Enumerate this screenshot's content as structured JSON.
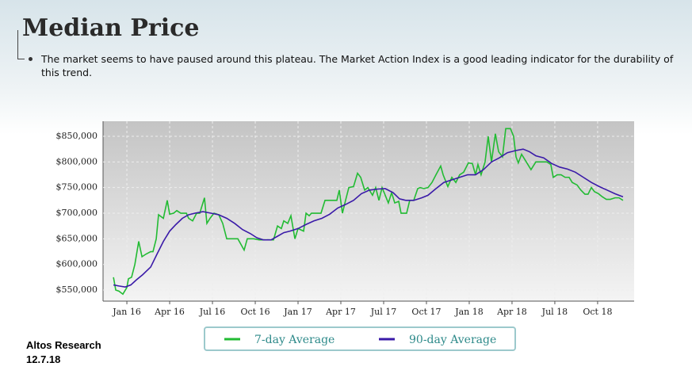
{
  "chart_data": {
    "type": "line",
    "title": "Median Price",
    "subtitle": "The market seems to have paused around this plateau. The Market Action Index is a good leading indicator for the durability of this trend.",
    "source": "Altos Research",
    "date": "12.7.18",
    "xlim": [
      -1.67,
      35.56
    ],
    "xticks": [
      {
        "value": 0,
        "label": "Jan 16"
      },
      {
        "value": 3,
        "label": "Apr 16"
      },
      {
        "value": 6,
        "label": "Jul 16"
      },
      {
        "value": 9,
        "label": "Oct 16"
      },
      {
        "value": 12,
        "label": "Jan 17"
      },
      {
        "value": 15,
        "label": "Apr 17"
      },
      {
        "value": 18,
        "label": "Jul 17"
      },
      {
        "value": 21,
        "label": "Oct 17"
      },
      {
        "value": 24,
        "label": "Jan 18"
      },
      {
        "value": 27,
        "label": "Apr 18"
      },
      {
        "value": 30,
        "label": "Jul 18"
      },
      {
        "value": 33,
        "label": "Oct 18"
      }
    ],
    "ylim": [
      528400,
      879400
    ],
    "yticks": [
      {
        "value": 550000,
        "label": "$550,000"
      },
      {
        "value": 600000,
        "label": "$600,000"
      },
      {
        "value": 650000,
        "label": "$650,000"
      },
      {
        "value": 700000,
        "label": "$700,000"
      },
      {
        "value": 750000,
        "label": "$750,000"
      },
      {
        "value": 800000,
        "label": "$800,000"
      },
      {
        "value": 850000,
        "label": "$850,000"
      }
    ],
    "grid": true,
    "series": [
      {
        "name": "7-day Average",
        "color": "#22bb33",
        "x": [
          -0.94,
          -0.78,
          -0.56,
          -0.28,
          0,
          0.11,
          0.33,
          0.56,
          0.83,
          1.06,
          1.33,
          1.67,
          1.83,
          2.06,
          2.22,
          2.56,
          2.83,
          3,
          3.28,
          3.5,
          3.78,
          4.17,
          4.33,
          4.61,
          4.89,
          5.11,
          5.44,
          5.61,
          5.83,
          6.11,
          6.44,
          6.72,
          7,
          7.78,
          8.22,
          8.44,
          8.89,
          9.28,
          9.61,
          10.28,
          10.56,
          10.83,
          11,
          11.28,
          11.5,
          11.78,
          12,
          12.39,
          12.56,
          12.78,
          12.94,
          13.61,
          13.89,
          14.72,
          14.89,
          15.11,
          15.33,
          15.56,
          15.89,
          16.17,
          16.39,
          16.67,
          16.89,
          17.22,
          17.44,
          17.67,
          17.89,
          18.33,
          18.56,
          18.78,
          19.06,
          19.22,
          19.61,
          19.83,
          20.11,
          20.39,
          20.56,
          20.83,
          21.11,
          21.39,
          21.67,
          22,
          22.17,
          22.5,
          22.78,
          23.06,
          23.33,
          23.61,
          23.94,
          24.22,
          24.44,
          24.61,
          24.83,
          25.11,
          25.33,
          25.56,
          25.83,
          26.06,
          26.33,
          26.56,
          26.89,
          27.11,
          27.28,
          27.44,
          27.67,
          28,
          28.33,
          28.67,
          29.06,
          29.44,
          29.72,
          29.89,
          30.17,
          30.44,
          30.72,
          31,
          31.22,
          31.56,
          31.83,
          32.11,
          32.33,
          32.56,
          32.78,
          33.06,
          33.33,
          33.61,
          33.89,
          34.22,
          34.5,
          34.78
        ],
        "values": [
          575000,
          550000,
          548000,
          542000,
          555000,
          572000,
          575000,
          600000,
          645000,
          615000,
          620000,
          625000,
          625000,
          650000,
          697000,
          690000,
          725000,
          698000,
          700000,
          705000,
          700000,
          700000,
          690000,
          685000,
          700000,
          700000,
          730000,
          680000,
          690000,
          700000,
          697000,
          680000,
          650000,
          650000,
          628000,
          650000,
          650000,
          648000,
          648000,
          648000,
          675000,
          670000,
          685000,
          680000,
          695000,
          650000,
          670000,
          665000,
          700000,
          695000,
          700000,
          700000,
          725000,
          725000,
          745000,
          700000,
          725000,
          750000,
          752000,
          778000,
          770000,
          745000,
          750000,
          735000,
          750000,
          725000,
          750000,
          720000,
          740000,
          720000,
          723000,
          700000,
          700000,
          725000,
          725000,
          748000,
          750000,
          748000,
          750000,
          760000,
          775000,
          792000,
          775000,
          752000,
          770000,
          760000,
          775000,
          780000,
          798000,
          797000,
          775000,
          795000,
          775000,
          800000,
          850000,
          800000,
          855000,
          820000,
          810000,
          865000,
          865000,
          850000,
          810000,
          798000,
          815000,
          800000,
          785000,
          800000,
          800000,
          800000,
          795000,
          770000,
          775000,
          775000,
          770000,
          770000,
          760000,
          755000,
          745000,
          737000,
          737000,
          750000,
          742000,
          738000,
          732000,
          727000,
          727000,
          730000,
          730000,
          725000
        ]
      },
      {
        "name": "90-day Average",
        "color": "#3a1aa8",
        "x": [
          -0.94,
          -0.56,
          -0.11,
          0.28,
          0.67,
          1.11,
          1.67,
          2.11,
          2.56,
          3,
          3.44,
          3.89,
          4.33,
          4.78,
          5.33,
          5.89,
          6.44,
          7,
          7.56,
          8.11,
          8.67,
          9.11,
          9.56,
          10.11,
          10.56,
          11,
          11.44,
          12,
          12.56,
          13.11,
          13.67,
          14.22,
          14.78,
          15.33,
          15.89,
          16.44,
          17,
          17.56,
          18.11,
          18.67,
          19.11,
          19.56,
          20.11,
          20.67,
          21.11,
          21.67,
          22.22,
          22.78,
          23.33,
          23.89,
          24.44,
          25,
          25.56,
          26.11,
          26.67,
          27.22,
          27.78,
          28.22,
          28.67,
          29.22,
          29.78,
          30.33,
          30.89,
          31.44,
          32,
          32.56,
          33.11,
          33.67,
          34.22,
          34.78
        ],
        "values": [
          560000,
          558000,
          556000,
          560000,
          570000,
          580000,
          595000,
          620000,
          645000,
          665000,
          678000,
          690000,
          697000,
          700000,
          703000,
          700000,
          697000,
          690000,
          680000,
          668000,
          660000,
          652000,
          648000,
          648000,
          655000,
          662000,
          665000,
          670000,
          678000,
          685000,
          690000,
          698000,
          710000,
          717000,
          725000,
          738000,
          745000,
          747000,
          748000,
          740000,
          728000,
          725000,
          725000,
          730000,
          735000,
          748000,
          760000,
          765000,
          770000,
          775000,
          775000,
          785000,
          800000,
          808000,
          818000,
          822000,
          825000,
          820000,
          812000,
          808000,
          797000,
          790000,
          786000,
          780000,
          770000,
          760000,
          752000,
          745000,
          738000,
          732000
        ]
      }
    ]
  }
}
